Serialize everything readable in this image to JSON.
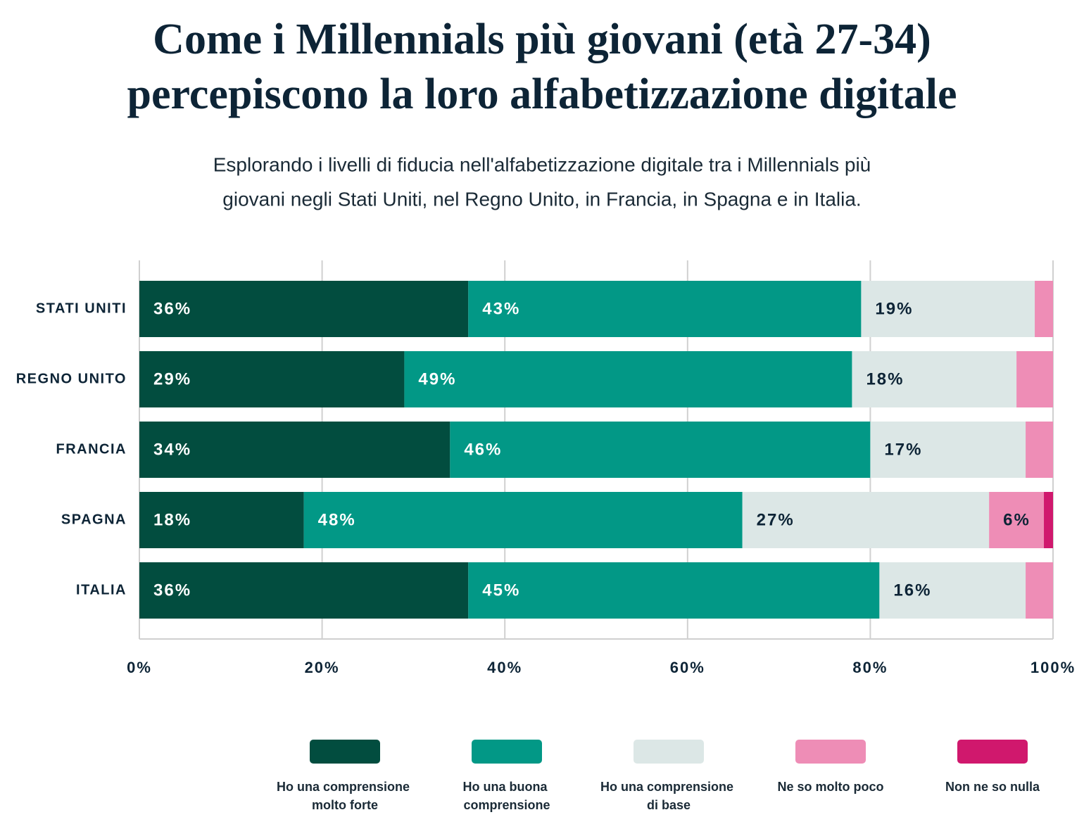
{
  "chart_data": {
    "type": "stacked-bar-horizontal",
    "title": [
      "Come i Millennials più giovani (età 27-34)",
      "percepiscono la loro alfabetizzazione digitale"
    ],
    "subtitle": [
      "Esplorando i livelli di fiducia nell'alfabetizzazione digitale tra i Millennials più",
      "giovani negli Stati Uniti, nel Regno Unito, in Francia, in Spagna e in Italia."
    ],
    "categories": [
      "STATI UNITI",
      "REGNO UNITO",
      "FRANCIA",
      "SPAGNA",
      "ITALIA"
    ],
    "series": [
      {
        "name": "Ho una comprensione molto forte",
        "color": "#024d3f",
        "label_color": "#ffffff",
        "values": [
          36,
          29,
          34,
          18,
          36
        ],
        "value_labels": [
          "36%",
          "29%",
          "34%",
          "18%",
          "36%"
        ]
      },
      {
        "name": "Ho una buona comprensione",
        "color": "#029886",
        "label_color": "#ffffff",
        "values": [
          43,
          49,
          46,
          48,
          45
        ],
        "value_labels": [
          "43%",
          "49%",
          "46%",
          "48%",
          "45%"
        ]
      },
      {
        "name": "Ho una comprensione di base",
        "color": "#dce7e6",
        "label_color": "#0d2436",
        "values": [
          19,
          18,
          17,
          27,
          16
        ],
        "value_labels": [
          "19%",
          "18%",
          "17%",
          "27%",
          "16%"
        ]
      },
      {
        "name": "Ne so molto poco",
        "color": "#ee8db6",
        "label_color": "#0d2436",
        "values": [
          2,
          4,
          3,
          6,
          3
        ],
        "value_labels": [
          null,
          null,
          null,
          "6%",
          null
        ]
      },
      {
        "name": "Non ne so nulla",
        "color": "#d0186d",
        "label_color": "#ffffff",
        "values": [
          0,
          0,
          0,
          1,
          0
        ],
        "value_labels": [
          null,
          null,
          null,
          null,
          null
        ]
      }
    ],
    "xlim": [
      0,
      100
    ],
    "xticks": [
      {
        "value": 0,
        "label": "0%"
      },
      {
        "value": 20,
        "label": "20%"
      },
      {
        "value": 40,
        "label": "40%"
      },
      {
        "value": 60,
        "label": "60%"
      },
      {
        "value": 80,
        "label": "80%"
      },
      {
        "value": 100,
        "label": "100%"
      }
    ],
    "grid": true,
    "legend": "bottom"
  }
}
